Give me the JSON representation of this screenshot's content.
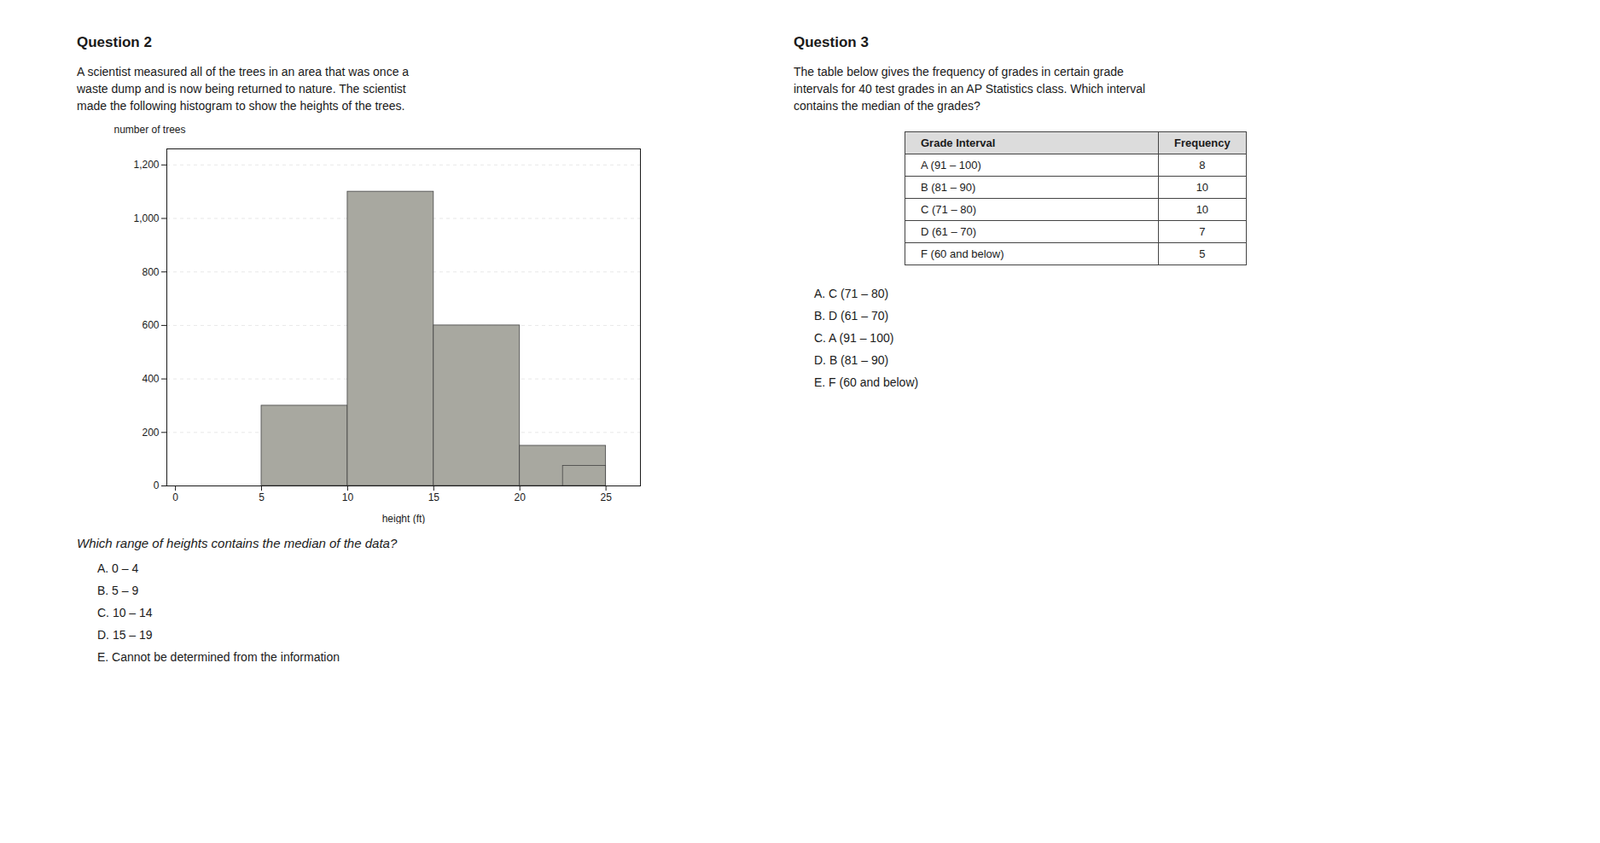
{
  "chart_data": {
    "type": "histogram",
    "x": [
      0,
      5,
      10,
      15,
      20,
      22.5
    ],
    "x_end": [
      5,
      10,
      15,
      20,
      25,
      25
    ],
    "values": [
      0,
      300,
      1100,
      600,
      150,
      75
    ],
    "color": "#a8a8a0",
    "xlabel": "height (ft)",
    "ylabel": "number of trees",
    "xlim": [
      -0.5,
      27
    ],
    "xticks": [
      0,
      5,
      10,
      15,
      20,
      25
    ],
    "ylim": [
      0,
      1260
    ],
    "yticks": [
      0,
      200,
      400,
      600,
      800,
      {
        "value": 1000,
        "label": "1,000"
      },
      {
        "value": 1200,
        "label": "1,200"
      }
    ],
    "grid": true
  },
  "q2": {
    "title": "Question 2",
    "text": [
      "A scientist measured all of the trees in an area that was once a",
      "waste dump and is now being returned to nature. The scientist",
      "made the following histogram to show the heights of the trees."
    ],
    "question": "Which range of heights contains the median of the data?",
    "choices": [
      "A. 0 – 4",
      "B. 5 – 9",
      "C. 10 – 14",
      "D. 15 – 19",
      "E. Cannot be determined from the information"
    ]
  },
  "q3": {
    "title": "Question 3",
    "text": [
      "The table below gives the frequency of grades in certain grade",
      "intervals for 40 test grades in an AP Statistics class. Which interval",
      "contains the median of the grades?"
    ],
    "table_headers": [
      "Grade Interval",
      "Frequency"
    ],
    "table_rows": [
      [
        "A (91 – 100)",
        "8"
      ],
      [
        "B (81 – 90)",
        "10"
      ],
      [
        "C (71 – 80)",
        "10"
      ],
      [
        "D (61 – 70)",
        "7"
      ],
      [
        "F (60 and below)",
        "5"
      ]
    ],
    "choices": [
      "A. C (71 – 80)",
      "B. D (61 – 70)",
      "C. A (91 – 100)",
      "D. B (81 – 90)",
      "E. F (60 and below)"
    ]
  }
}
